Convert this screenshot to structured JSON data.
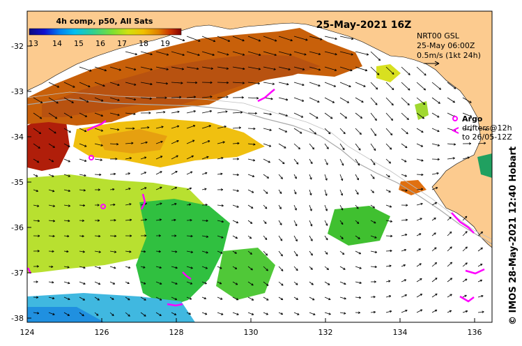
{
  "title": "25-May-2021 16Z",
  "colorbar": {
    "title": "4h comp, p50, All Sats",
    "ticks": [
      "13",
      "14",
      "15",
      "16",
      "17",
      "18",
      "19"
    ],
    "colors": [
      "#0a0a80",
      "#1010d0",
      "#0070e0",
      "#00b0f0",
      "#20d0a0",
      "#60e040",
      "#b0e020",
      "#f0d000",
      "#f0a000",
      "#e06000",
      "#d02000",
      "#900000"
    ]
  },
  "currents_legend": {
    "line1": "NRT00 GSL",
    "line2": "25-May 06:00Z",
    "line3": "0.5m/s (1kt 24h)"
  },
  "argo_legend": {
    "argo_label": "Argo",
    "drifters_line1": "drifters@12h",
    "drifters_line2": "to 26/05-12Z"
  },
  "credit": "© IMOS 28-May-2021 12:40 Hobart",
  "axes": {
    "x_ticks": [
      "124",
      "126",
      "128",
      "130",
      "132",
      "134",
      "136"
    ],
    "y_ticks": [
      "-32",
      "-33",
      "-34",
      "-35",
      "-36",
      "-37",
      "-38"
    ]
  },
  "colors": {
    "land": "#fccb8f",
    "ocean": "#ffffff",
    "argo": "#ff00ff",
    "bathymetry": "#a8a8a8"
  }
}
